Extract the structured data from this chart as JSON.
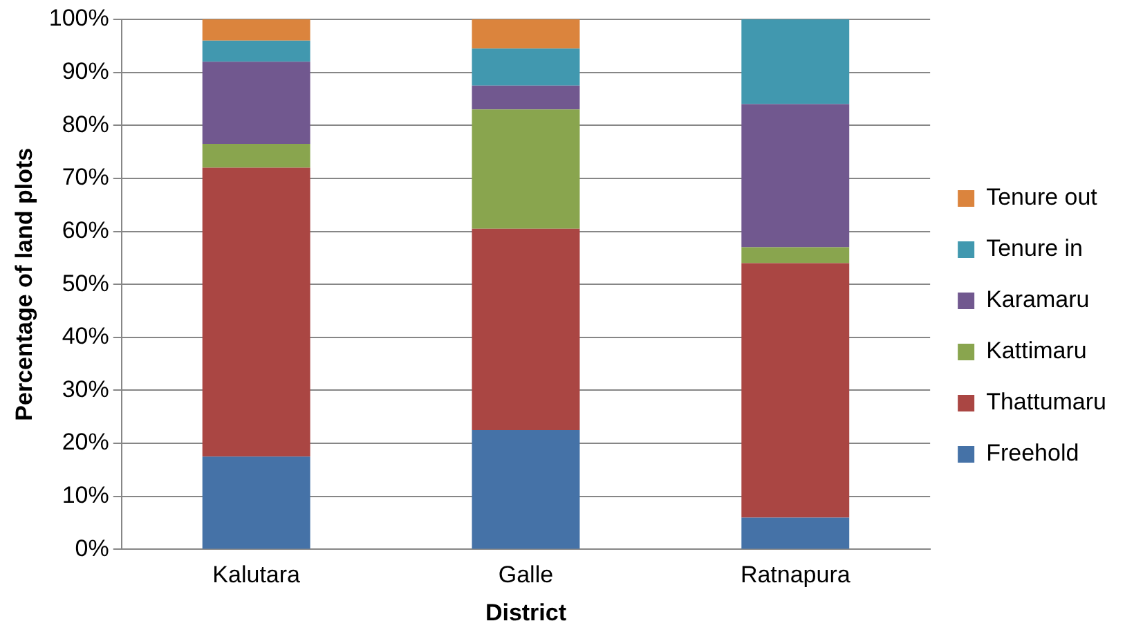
{
  "chart_data": {
    "type": "bar",
    "stacked": true,
    "xlabel": "District",
    "ylabel": "Percentage of land plots",
    "categories": [
      "Kalutara",
      "Galle",
      "Ratnapura"
    ],
    "series": [
      {
        "name": "Freehold",
        "color": "#4572a7",
        "values": [
          17.5,
          22.5,
          6
        ]
      },
      {
        "name": "Thattumaru",
        "color": "#aa4643",
        "values": [
          54.5,
          38,
          48
        ]
      },
      {
        "name": "Kattimaru",
        "color": "#89a54e",
        "values": [
          4.5,
          22.5,
          3
        ]
      },
      {
        "name": "Karamaru",
        "color": "#71588f",
        "values": [
          15.5,
          4.5,
          27
        ]
      },
      {
        "name": "Tenure in",
        "color": "#4198af",
        "values": [
          4,
          7,
          16
        ]
      },
      {
        "name": "Tenure out",
        "color": "#db843d",
        "values": [
          4,
          5.5,
          0
        ]
      }
    ],
    "ylim": [
      0,
      100
    ],
    "yticks": [
      {
        "value": 0,
        "label": "0%"
      },
      {
        "value": 10,
        "label": "10%"
      },
      {
        "value": 20,
        "label": "20%"
      },
      {
        "value": 30,
        "label": "30%"
      },
      {
        "value": 40,
        "label": "40%"
      },
      {
        "value": 50,
        "label": "50%"
      },
      {
        "value": 60,
        "label": "60%"
      },
      {
        "value": 70,
        "label": "70%"
      },
      {
        "value": 80,
        "label": "80%"
      },
      {
        "value": 90,
        "label": "90%"
      },
      {
        "value": 100,
        "label": "100%"
      }
    ],
    "grid": "y",
    "legend": "right"
  }
}
